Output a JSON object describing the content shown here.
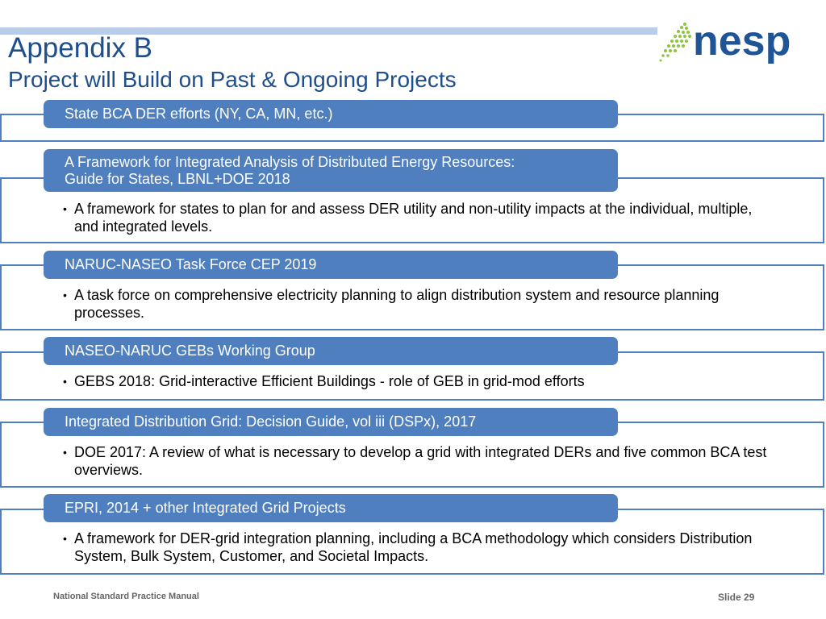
{
  "slide": {
    "title": "Appendix B",
    "subtitle": "Project will Build on Past & Ongoing Projects"
  },
  "logo": {
    "text": "nesp",
    "color": "#1f5597",
    "dot_color": "#8cc63f"
  },
  "items": [
    {
      "header": "State BCA DER efforts (NY, CA, MN, etc.)",
      "bullet": ""
    },
    {
      "header": "A Framework for Integrated Analysis of Distributed Energy Resources:\nGuide for States, LBNL+DOE  2018",
      "bullet": "A framework for states to plan for and assess DER utility and non-utility impacts at the individual, multiple, and integrated levels."
    },
    {
      "header": "NARUC-NASEO Task Force CEP 2019",
      "bullet": "A task force on comprehensive electricity planning to align distribution system and resource planning processes."
    },
    {
      "header": "NASEO-NARUC GEBs Working Group",
      "bullet": "GEBS 2018: Grid-interactive Efficient Buildings - role of GEB in grid-mod efforts"
    },
    {
      "header": "Integrated Distribution Grid: Decision Guide, vol iii (DSPx), 2017",
      "bullet": "DOE 2017: A review of what is necessary to develop a grid with integrated DERs and five common BCA test overviews."
    },
    {
      "header": "EPRI, 2014 + other Integrated Grid Projects",
      "bullet": "A framework for DER-grid integration planning, including a BCA methodology which considers Distribution System, Bulk System, Customer, and Societal Impacts."
    }
  ],
  "footer": {
    "left": "National Standard Practice Manual",
    "right": "Slide 29"
  },
  "colors": {
    "header_fill": "#4f7fbe",
    "box_border": "#4f7fc1",
    "title": "#1f4e8c"
  }
}
